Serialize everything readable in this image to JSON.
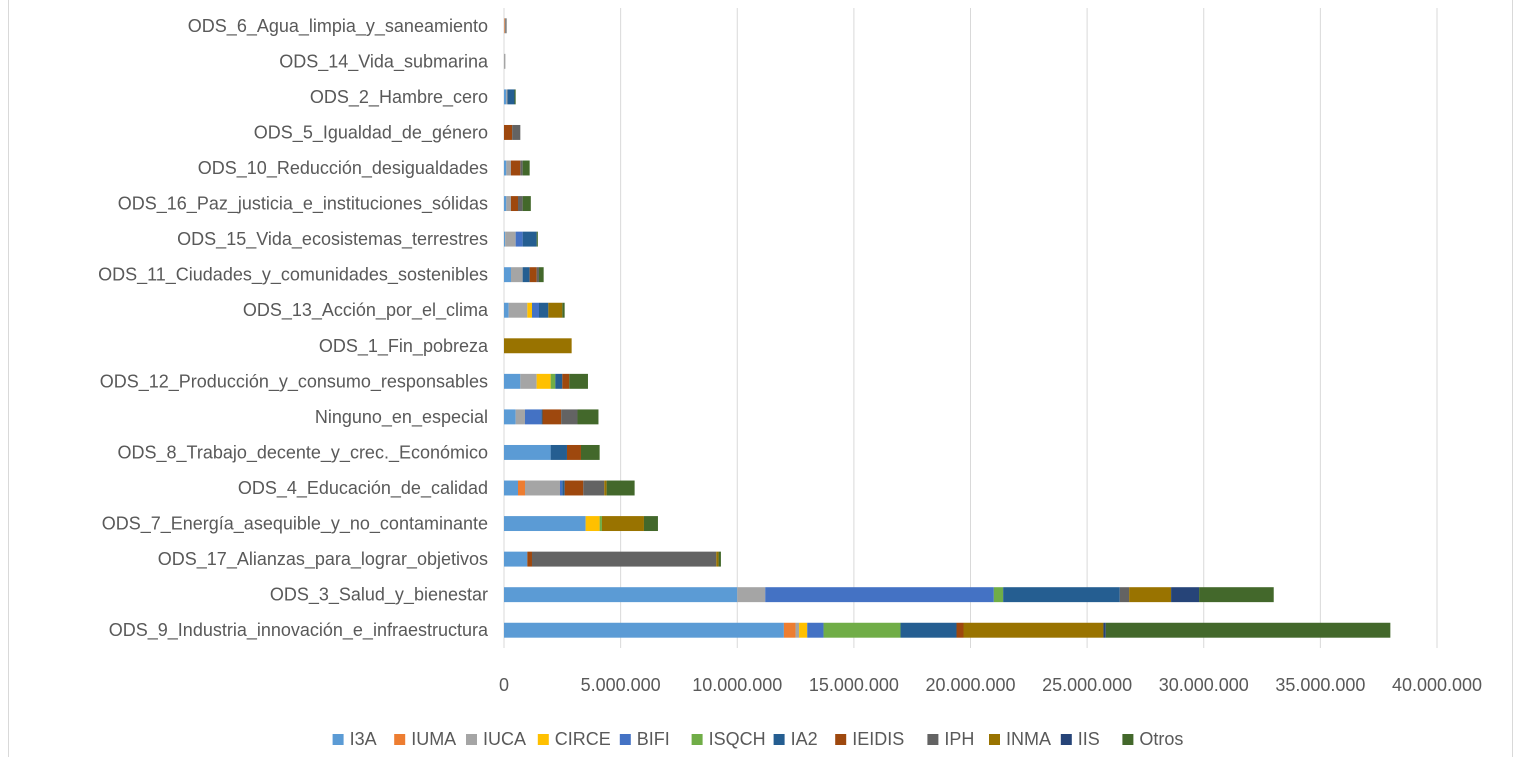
{
  "chart_data": {
    "type": "bar",
    "orientation": "horizontal",
    "stacked": true,
    "title": "",
    "xlabel": "",
    "ylabel": "",
    "xlim": [
      0,
      40000000
    ],
    "x_ticks": [
      "0",
      "5.000.000",
      "10.000.000",
      "15.000.000",
      "20.000.000",
      "25.000.000",
      "30.000.000",
      "35.000.000",
      "40.000.000"
    ],
    "grid": "vertical",
    "legend_position": "bottom",
    "categories": [
      "ODS_6_Agua_limpia_y_saneamiento",
      "ODS_14_Vida_submarina",
      "ODS_2_Hambre_cero",
      "ODS_5_Igualdad_de_género",
      "ODS_10_Reducción_desigualdades",
      "ODS_16_Paz_justicia_e_instituciones_sólidas",
      "ODS_15_Vida_ecosistemas_terrestres",
      "ODS_11_Ciudades_y_comunidades_sostenibles",
      "ODS_13_Acción_por_el_clima",
      "ODS_1_Fin_pobreza",
      "ODS_12_Producción_y_consumo_responsables",
      "Ninguno_en_especial",
      "ODS_8_Trabajo_decente_y_crec._Económico",
      "ODS_4_Educación_de_calidad",
      "ODS_7_Energía_asequible_y_no_contaminante",
      "ODS_17_Alianzas_para_lograr_objetivos",
      "ODS_3_Salud_y_bienestar",
      "ODS_9_Industria_innovación_e_infraestructura"
    ],
    "series": [
      {
        "name": "I3A",
        "color": "#5b9bd5",
        "values": [
          0,
          0,
          100000,
          0,
          100000,
          100000,
          50000,
          300000,
          200000,
          0,
          700000,
          500000,
          2000000,
          600000,
          3500000,
          1000000,
          10000000,
          12000000
        ]
      },
      {
        "name": "IUMA",
        "color": "#ed7d31",
        "values": [
          30000,
          0,
          0,
          0,
          0,
          0,
          0,
          0,
          0,
          0,
          0,
          0,
          0,
          300000,
          0,
          0,
          0,
          500000
        ]
      },
      {
        "name": "IUCA",
        "color": "#a5a5a5",
        "values": [
          30000,
          60000,
          50000,
          0,
          200000,
          200000,
          450000,
          500000,
          800000,
          0,
          700000,
          400000,
          0,
          1500000,
          0,
          0,
          1200000,
          150000
        ]
      },
      {
        "name": "CIRCE",
        "color": "#ffc000",
        "values": [
          0,
          0,
          0,
          0,
          0,
          0,
          0,
          0,
          200000,
          0,
          600000,
          0,
          0,
          0,
          600000,
          0,
          0,
          350000
        ]
      },
      {
        "name": "BIFI",
        "color": "#4472c4",
        "values": [
          0,
          0,
          0,
          0,
          0,
          0,
          300000,
          0,
          300000,
          0,
          0,
          700000,
          0,
          100000,
          0,
          0,
          9800000,
          700000
        ]
      },
      {
        "name": "ISQCH",
        "color": "#70ad47",
        "values": [
          0,
          0,
          0,
          0,
          0,
          0,
          0,
          0,
          0,
          0,
          200000,
          0,
          0,
          0,
          100000,
          0,
          400000,
          3300000
        ]
      },
      {
        "name": "IA2",
        "color": "#255e91",
        "values": [
          0,
          0,
          300000,
          0,
          0,
          0,
          600000,
          300000,
          400000,
          0,
          300000,
          50000,
          700000,
          100000,
          0,
          0,
          5000000,
          2400000
        ]
      },
      {
        "name": "IEIDIS",
        "color": "#9e480e",
        "values": [
          0,
          0,
          0,
          350000,
          400000,
          300000,
          0,
          300000,
          0,
          0,
          300000,
          800000,
          600000,
          800000,
          0,
          200000,
          0,
          300000
        ]
      },
      {
        "name": "IPH",
        "color": "#636363",
        "values": [
          50000,
          0,
          0,
          350000,
          100000,
          200000,
          0,
          100000,
          0,
          0,
          0,
          700000,
          0,
          900000,
          0,
          7900000,
          400000,
          0
        ]
      },
      {
        "name": "INMA",
        "color": "#997300",
        "values": [
          0,
          0,
          0,
          0,
          0,
          0,
          0,
          0,
          600000,
          2900000,
          0,
          0,
          0,
          100000,
          1800000,
          100000,
          1800000,
          6000000
        ]
      },
      {
        "name": "IIS",
        "color": "#264478",
        "values": [
          0,
          0,
          0,
          0,
          0,
          0,
          0,
          0,
          0,
          0,
          0,
          0,
          0,
          0,
          0,
          0,
          1200000,
          100000
        ]
      },
      {
        "name": "Otros",
        "color": "#43682b",
        "values": [
          0,
          0,
          50000,
          0,
          300000,
          350000,
          50000,
          200000,
          100000,
          0,
          800000,
          900000,
          800000,
          1200000,
          600000,
          100000,
          3200000,
          12200000
        ]
      }
    ]
  }
}
